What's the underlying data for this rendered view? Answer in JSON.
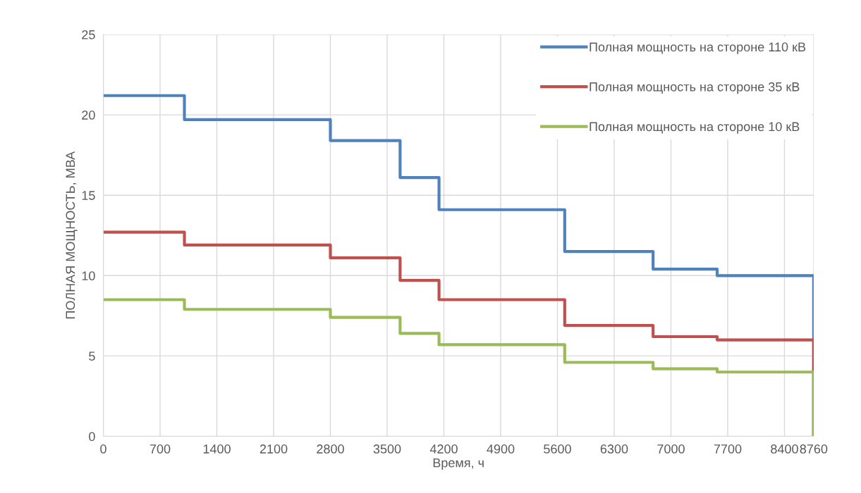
{
  "chart_data": {
    "type": "step",
    "xlabel": "Время, ч",
    "ylabel": "ПОЛНАЯ МОЩНОСТЬ, МВА",
    "x": [
      0,
      1000,
      2800,
      3660,
      4140,
      5690,
      6780,
      7570,
      8760
    ],
    "series": [
      {
        "name": "Полная мощность на стороне 110 кВ",
        "color": "#4f81bd",
        "values": [
          21.2,
          19.7,
          18.4,
          16.1,
          14.1,
          11.5,
          10.4,
          10.0,
          0
        ]
      },
      {
        "name": "Полная мощность на стороне 35 кВ",
        "color": "#c0504d",
        "values": [
          12.7,
          11.9,
          11.1,
          9.7,
          8.5,
          6.9,
          6.2,
          6.0,
          0
        ]
      },
      {
        "name": "Полная мощность на стороне 10 кВ",
        "color": "#9bbb59",
        "values": [
          8.5,
          7.9,
          7.4,
          6.4,
          5.7,
          4.6,
          4.2,
          4.0,
          0
        ]
      }
    ],
    "xlim": [
      0,
      8760
    ],
    "ylim": [
      0,
      25
    ],
    "xticks": [
      0,
      700,
      1400,
      2100,
      2800,
      3500,
      4200,
      4900,
      5600,
      6300,
      7000,
      7700,
      8400,
      8760
    ],
    "yticks": [
      0,
      5,
      10,
      15,
      20,
      25
    ],
    "grid": true,
    "legend": "top right",
    "marker": "none",
    "line_style": "solid"
  }
}
